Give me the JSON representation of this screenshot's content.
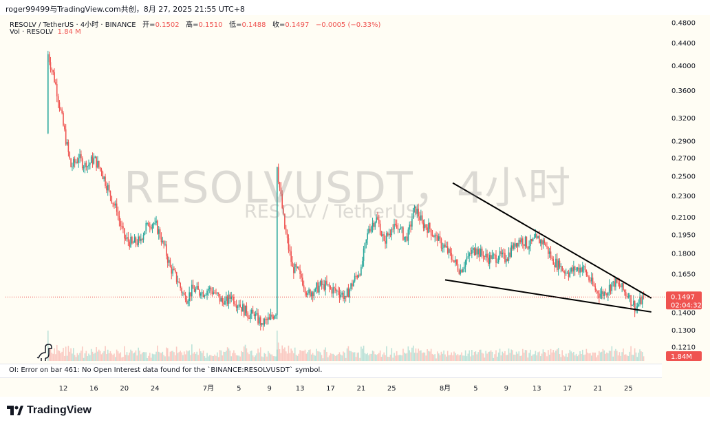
{
  "header": {
    "author_line": "roger99499与TradingView.com共创，8月 27, 2025 21:55 UTC+8"
  },
  "legend": {
    "symbol": "RESOLV / TetherUS · 4小时 · BINANCE",
    "open_label": "开=",
    "open": "0.1502",
    "high_label": "高=",
    "high": "0.1510",
    "low_label": "低=",
    "low": "0.1488",
    "close_label": "收=",
    "close": "0.1497",
    "change": "−0.0005 (−0.33%)",
    "vol_label": "Vol · RESOLV",
    "vol_value": "1.84 M"
  },
  "watermark": {
    "main": "RESOLVUSDT，4小时",
    "sub": "RESOLV / TetherUS"
  },
  "error_message": "OI: Error on bar 461: No Open Interest data found for the `BINANCE:RESOLVUSDT` symbol.",
  "price_tag": {
    "price": "0.1497",
    "countdown": "02:04:32"
  },
  "volume_tag": "1.84M",
  "brand": "TradingView",
  "colors": {
    "up": "#26a69a",
    "down": "#ef5350",
    "background": "#fffdf4",
    "trendline": "#000000"
  },
  "icons": [
    "dinosaur-icon",
    "tradingview-logo-icon"
  ],
  "chart_data": {
    "type": "candlestick",
    "title": "RESOLV / TetherUS · 4小时 · BINANCE",
    "scale": "log",
    "y_ticks": [
      "0.4800",
      "0.4400",
      "0.4000",
      "0.3600",
      "0.3200",
      "0.2900",
      "0.2700",
      "0.2500",
      "0.2300",
      "0.2100",
      "0.1950",
      "0.1800",
      "0.1650",
      "0.1400",
      "0.1300",
      "0.1210"
    ],
    "x_ticks": [
      "12",
      "16",
      "20",
      "24",
      "7月",
      "5",
      "9",
      "13",
      "17",
      "21",
      "25",
      "8月",
      "5",
      "9",
      "13",
      "17",
      "21",
      "25"
    ],
    "x_range": [
      "2025-06-10",
      "2025-08-27"
    ],
    "y_range": [
      0.115,
      0.5
    ],
    "close_path": [
      [
        "2025-06-10",
        0.3
      ],
      [
        "2025-06-10",
        0.42
      ],
      [
        "2025-06-11",
        0.37
      ],
      [
        "2025-06-12",
        0.31
      ],
      [
        "2025-06-13",
        0.26
      ],
      [
        "2025-06-14",
        0.27
      ],
      [
        "2025-06-15",
        0.26
      ],
      [
        "2025-06-16",
        0.27
      ],
      [
        "2025-06-17",
        0.255
      ],
      [
        "2025-06-18",
        0.235
      ],
      [
        "2025-06-19",
        0.215
      ],
      [
        "2025-06-20",
        0.192
      ],
      [
        "2025-06-21",
        0.188
      ],
      [
        "2025-06-22",
        0.19
      ],
      [
        "2025-06-23",
        0.205
      ],
      [
        "2025-06-24",
        0.205
      ],
      [
        "2025-06-25",
        0.19
      ],
      [
        "2025-06-26",
        0.17
      ],
      [
        "2025-06-27",
        0.16
      ],
      [
        "2025-06-28",
        0.148
      ],
      [
        "2025-06-29",
        0.155
      ],
      [
        "2025-06-30",
        0.152
      ],
      [
        "2025-07-01",
        0.155
      ],
      [
        "2025-07-02",
        0.152
      ],
      [
        "2025-07-03",
        0.145
      ],
      [
        "2025-07-04",
        0.15
      ],
      [
        "2025-07-05",
        0.145
      ],
      [
        "2025-07-06",
        0.14
      ],
      [
        "2025-07-07",
        0.138
      ],
      [
        "2025-07-08",
        0.134
      ],
      [
        "2025-07-09",
        0.136
      ],
      [
        "2025-07-10",
        0.142
      ],
      [
        "2025-07-10",
        0.26
      ],
      [
        "2025-07-11",
        0.2
      ],
      [
        "2025-07-12",
        0.17
      ],
      [
        "2025-07-13",
        0.165
      ],
      [
        "2025-07-14",
        0.152
      ],
      [
        "2025-07-15",
        0.155
      ],
      [
        "2025-07-16",
        0.158
      ],
      [
        "2025-07-17",
        0.155
      ],
      [
        "2025-07-18",
        0.153
      ],
      [
        "2025-07-19",
        0.15
      ],
      [
        "2025-07-20",
        0.16
      ],
      [
        "2025-07-21",
        0.17
      ],
      [
        "2025-07-22",
        0.2
      ],
      [
        "2025-07-23",
        0.21
      ],
      [
        "2025-07-24",
        0.19
      ],
      [
        "2025-07-25",
        0.2
      ],
      [
        "2025-07-26",
        0.2
      ],
      [
        "2025-07-27",
        0.19
      ],
      [
        "2025-07-28",
        0.22
      ],
      [
        "2025-07-29",
        0.205
      ],
      [
        "2025-07-30",
        0.2
      ],
      [
        "2025-07-31",
        0.19
      ],
      [
        "2025-08-01",
        0.185
      ],
      [
        "2025-08-02",
        0.175
      ],
      [
        "2025-08-03",
        0.168
      ],
      [
        "2025-08-04",
        0.178
      ],
      [
        "2025-08-05",
        0.184
      ],
      [
        "2025-08-06",
        0.178
      ],
      [
        "2025-08-07",
        0.176
      ],
      [
        "2025-08-08",
        0.178
      ],
      [
        "2025-08-09",
        0.176
      ],
      [
        "2025-08-10",
        0.188
      ],
      [
        "2025-08-11",
        0.192
      ],
      [
        "2025-08-12",
        0.186
      ],
      [
        "2025-08-13",
        0.192
      ],
      [
        "2025-08-14",
        0.188
      ],
      [
        "2025-08-15",
        0.176
      ],
      [
        "2025-08-16",
        0.17
      ],
      [
        "2025-08-17",
        0.166
      ],
      [
        "2025-08-18",
        0.168
      ],
      [
        "2025-08-19",
        0.17
      ],
      [
        "2025-08-20",
        0.16
      ],
      [
        "2025-08-21",
        0.152
      ],
      [
        "2025-08-22",
        0.152
      ],
      [
        "2025-08-23",
        0.16
      ],
      [
        "2025-08-24",
        0.156
      ],
      [
        "2025-08-25",
        0.15
      ],
      [
        "2025-08-26",
        0.143
      ],
      [
        "2025-08-27",
        0.1497
      ]
    ],
    "trendlines": [
      {
        "from": [
          "2025-08-02",
          0.243
        ],
        "to": [
          "2025-08-28",
          0.149
        ]
      },
      {
        "from": [
          "2025-08-01",
          0.161
        ],
        "to": [
          "2025-08-28",
          0.1405
        ]
      }
    ],
    "last_price": 0.1497,
    "last_volume": "1.84M"
  }
}
